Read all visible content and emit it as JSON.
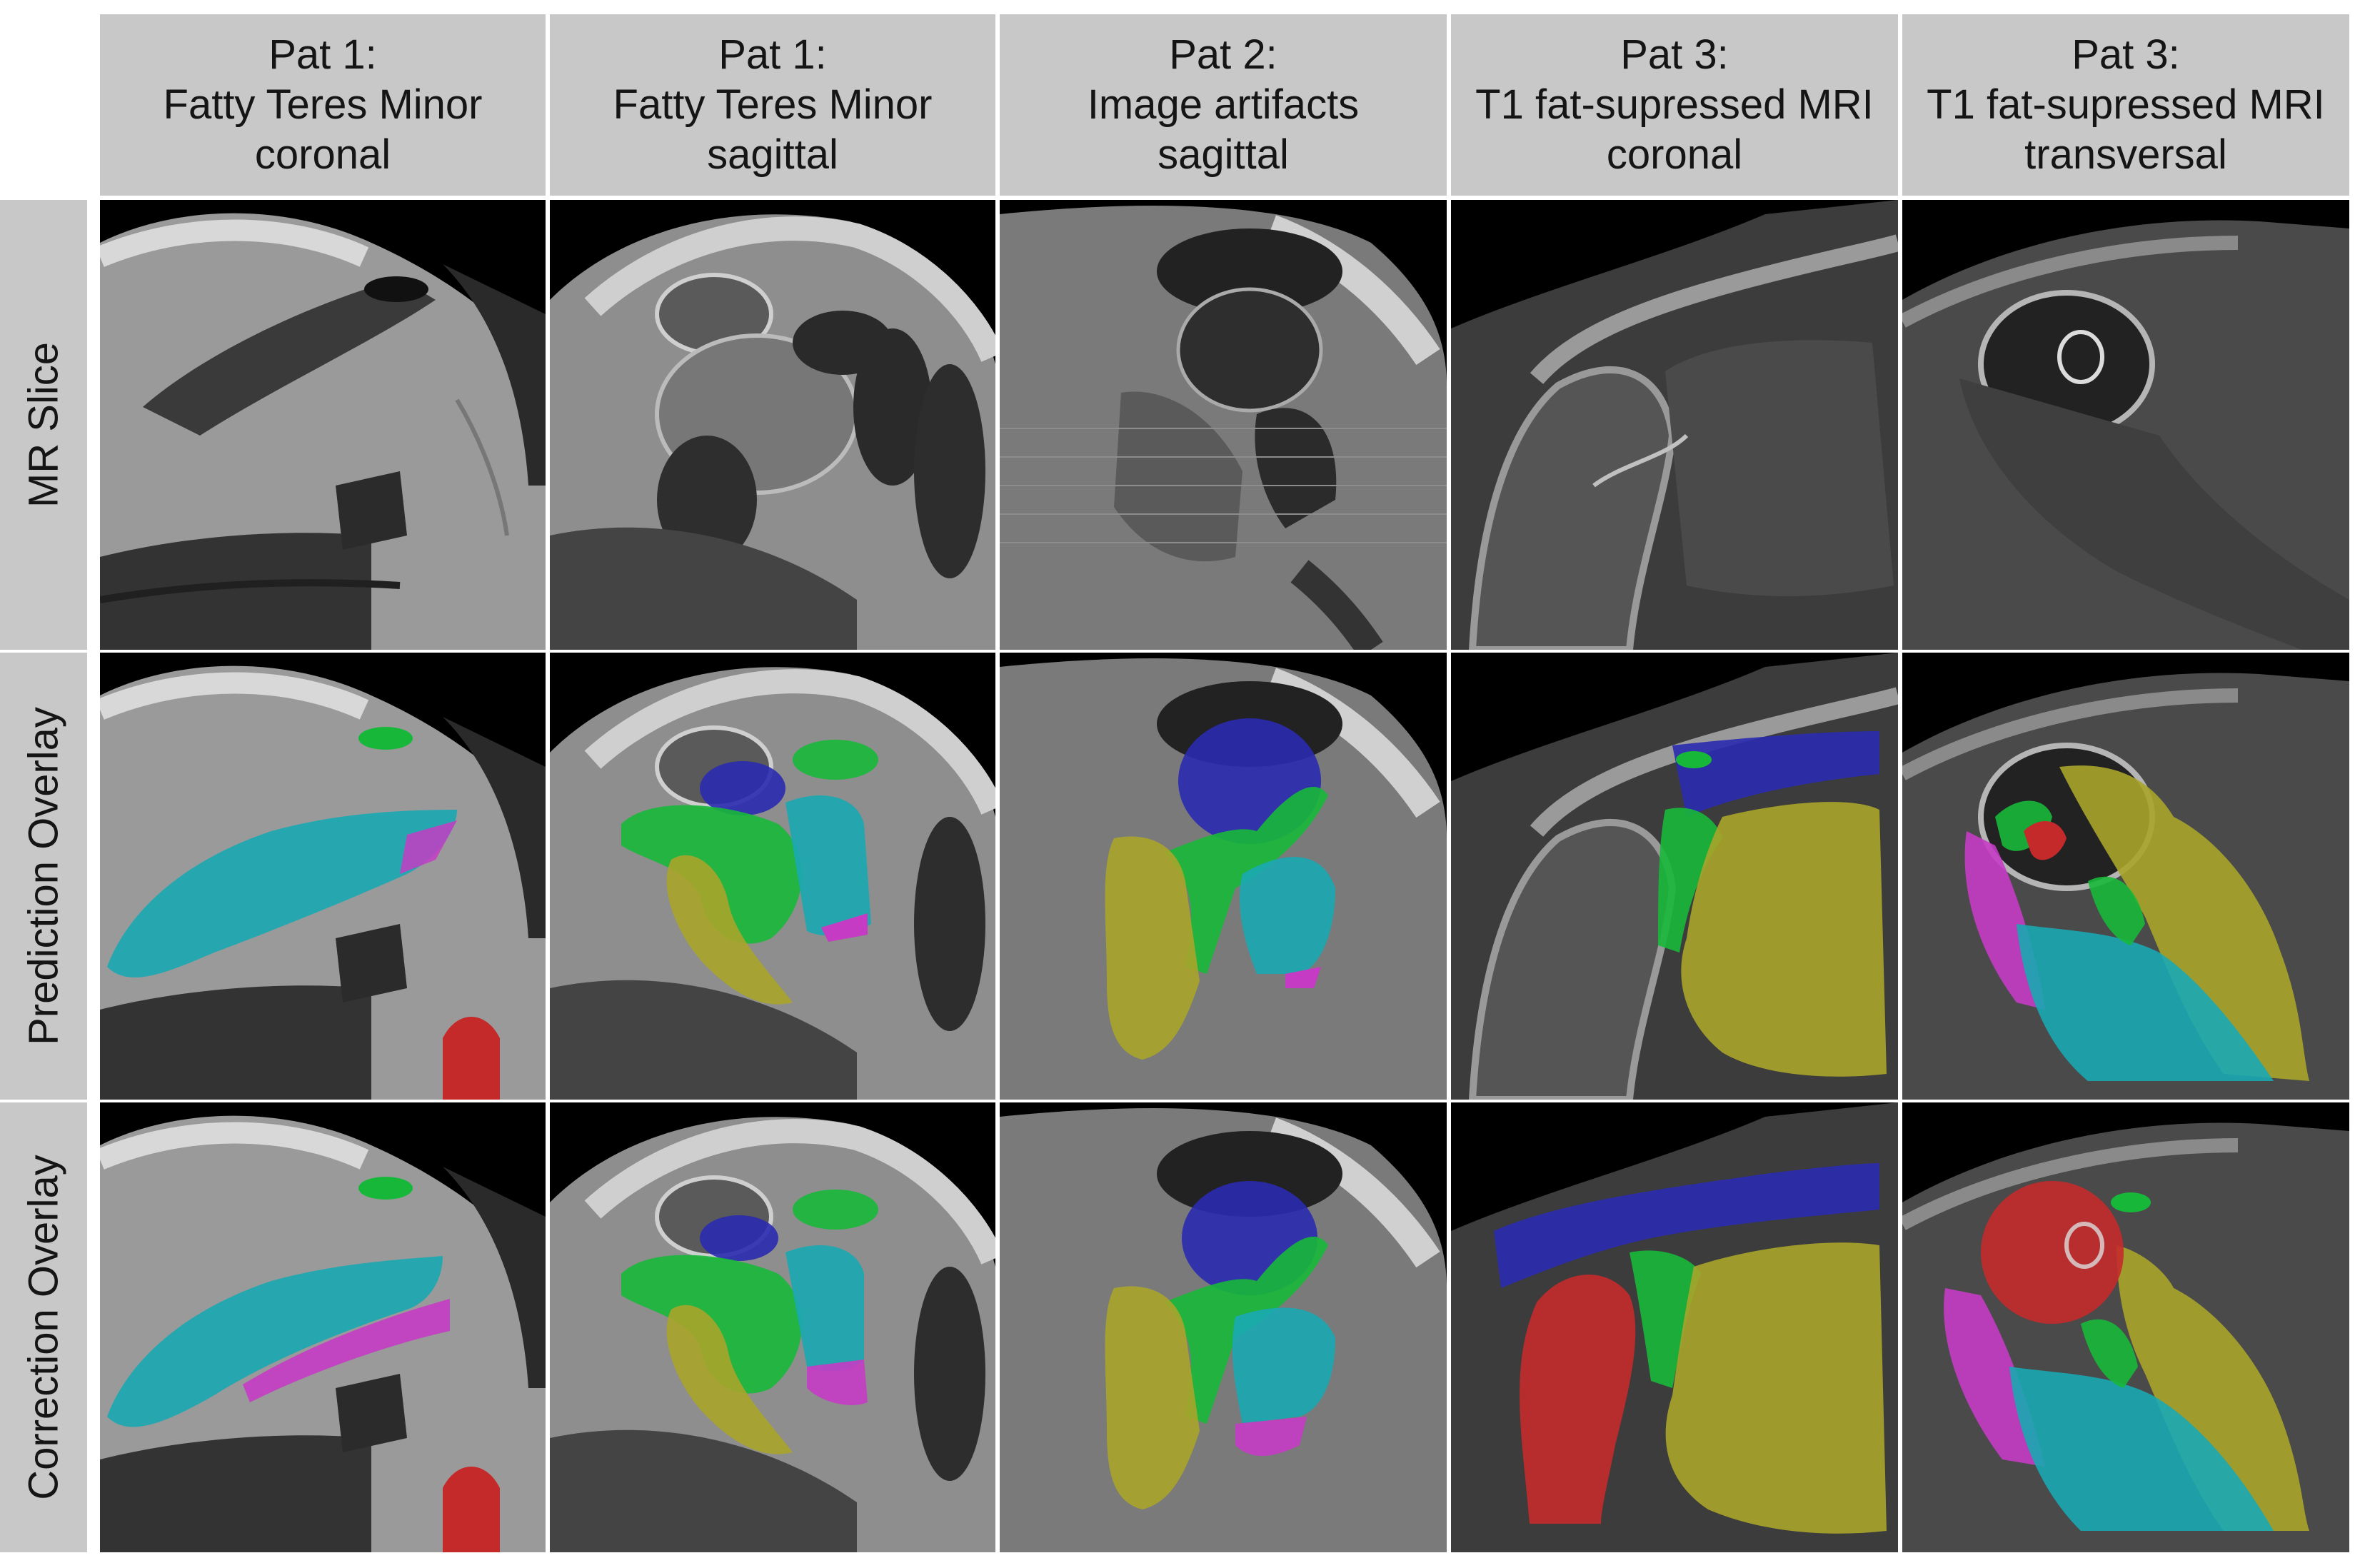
{
  "columns": [
    {
      "line1": "Pat 1:",
      "line2": "Fatty Teres Minor",
      "line3": "coronal"
    },
    {
      "line1": "Pat 1:",
      "line2": "Fatty Teres Minor",
      "line3": "sagittal"
    },
    {
      "line1": "Pat 2:",
      "line2": "Image artifacts",
      "line3": "sagittal"
    },
    {
      "line1": "Pat 3:",
      "line2": "T1 fat-supressed MRI",
      "line3": "coronal"
    },
    {
      "line1": "Pat 3:",
      "line2": "T1 fat-supressed MRI",
      "line3": "transversal"
    }
  ],
  "rows": [
    {
      "label": "MR Slice"
    },
    {
      "label": "Prediction Overlay"
    },
    {
      "label": "Correction Overlay"
    }
  ],
  "colors": {
    "header_bg": "#c8c8c8",
    "cyan": "#1aa9b2",
    "magenta": "#c53bc4",
    "green": "#17b83a",
    "blue": "#2a2bb0",
    "olive": "#a9a52a",
    "red": "#c42a2a"
  }
}
